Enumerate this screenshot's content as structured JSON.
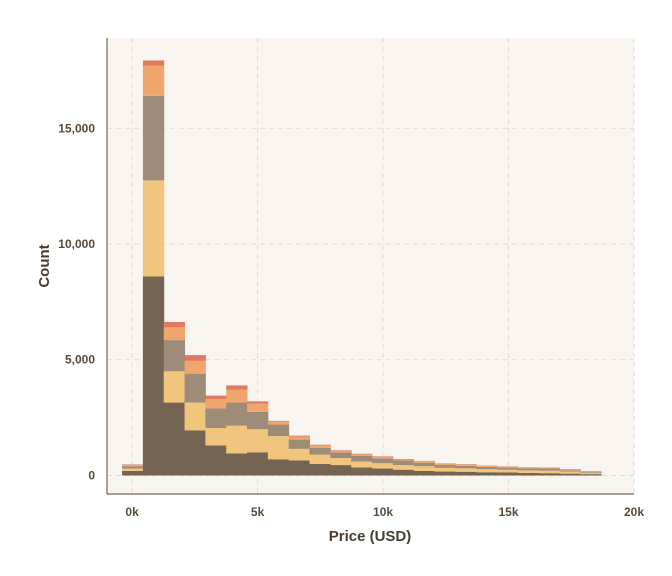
{
  "chart_data": {
    "type": "bar",
    "stacked": true,
    "title": "",
    "xlabel": "Price (USD)",
    "ylabel": "Count",
    "xlim": [
      -1000,
      20000
    ],
    "ylim": [
      -800,
      18900
    ],
    "grid": true,
    "legend": "none",
    "x_ticks": [
      {
        "value": 0,
        "label": "0k"
      },
      {
        "value": 5000,
        "label": "5k"
      },
      {
        "value": 10000,
        "label": "10k"
      },
      {
        "value": 15000,
        "label": "15k"
      },
      {
        "value": 20000,
        "label": "20k"
      }
    ],
    "y_ticks": [
      {
        "value": 0,
        "label": "0"
      },
      {
        "value": 5000,
        "label": "5,000"
      },
      {
        "value": 10000,
        "label": "10,000"
      },
      {
        "value": 15000,
        "label": "15,000"
      }
    ],
    "bin_edges": [
      -400,
      430,
      1260,
      2090,
      2920,
      3750,
      4580,
      5410,
      6240,
      7070,
      7900,
      8730,
      9560,
      10390,
      11220,
      12050,
      12880,
      13710,
      14540,
      15370,
      16200,
      17030,
      17860,
      18690
    ],
    "series": [
      {
        "color": "#756451",
        "values": [
          200,
          8600,
          3150,
          1950,
          1300,
          950,
          1000,
          700,
          650,
          500,
          450,
          350,
          300,
          250,
          200,
          170,
          160,
          140,
          130,
          110,
          100,
          80,
          60
        ]
      },
      {
        "color": "#f2c57c",
        "values": [
          100,
          4150,
          1350,
          1200,
          750,
          1200,
          1000,
          1000,
          500,
          400,
          300,
          250,
          230,
          200,
          200,
          160,
          150,
          130,
          120,
          110,
          110,
          90,
          60
        ]
      },
      {
        "color": "#9e8b78",
        "values": [
          100,
          3650,
          1350,
          1250,
          850,
          1000,
          750,
          500,
          400,
          300,
          250,
          250,
          210,
          200,
          150,
          120,
          110,
          100,
          90,
          90,
          90,
          50,
          35
        ]
      },
      {
        "color": "#f0a56c",
        "values": [
          50,
          1300,
          550,
          550,
          400,
          550,
          350,
          120,
          130,
          100,
          60,
          60,
          60,
          40,
          60,
          50,
          50,
          40,
          40,
          30,
          30,
          40,
          25
        ]
      },
      {
        "color": "#e07a5f",
        "values": [
          25,
          230,
          230,
          250,
          150,
          190,
          100,
          40,
          40,
          30,
          30,
          30,
          25,
          20,
          20,
          20,
          20,
          15,
          15,
          15,
          15,
          15,
          15
        ]
      }
    ]
  }
}
